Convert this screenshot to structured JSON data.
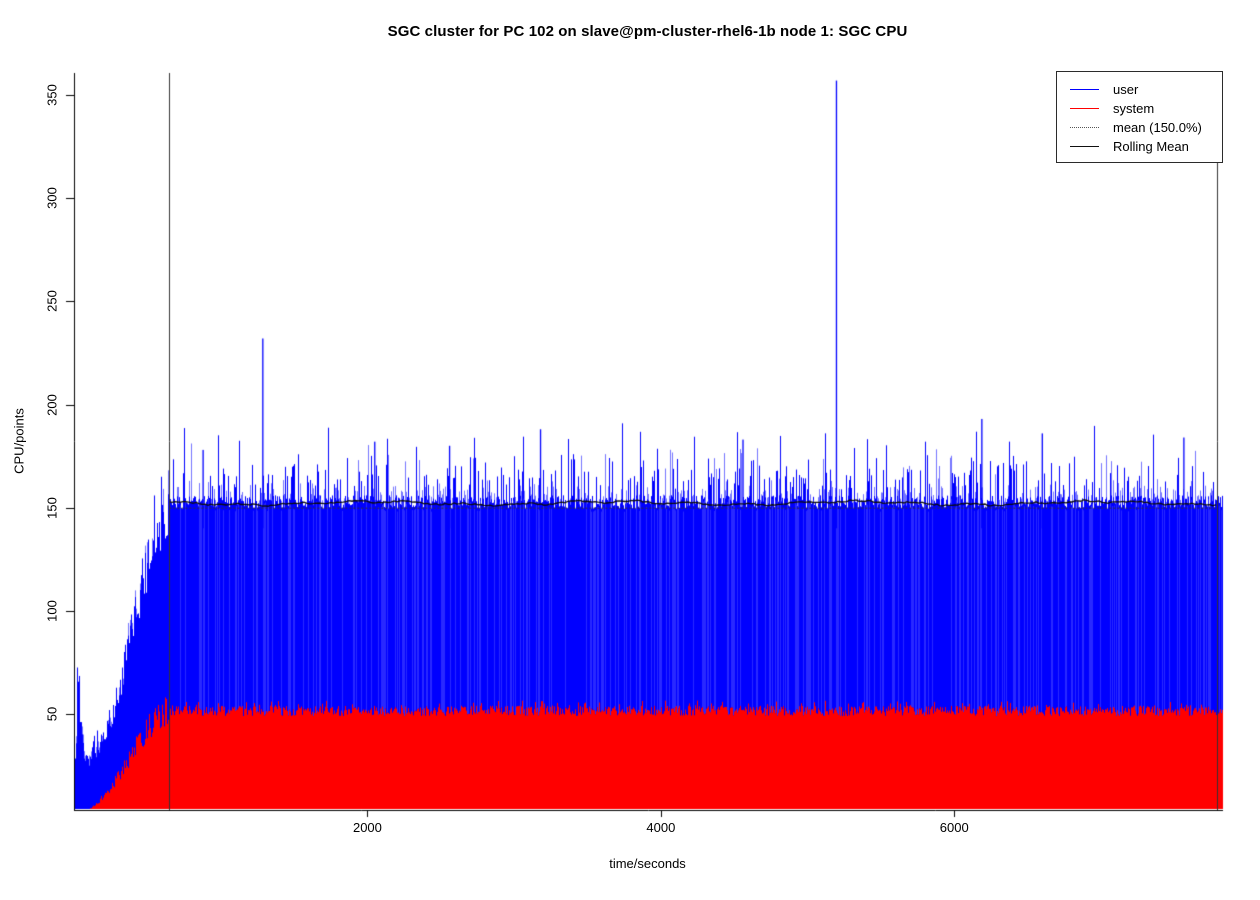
{
  "chart_data": {
    "type": "area",
    "title": "SGC cluster for PC 102 on slave@pm-cluster-rhel6-1b node 1: SGC CPU",
    "xlabel": "time/seconds",
    "ylabel": "CPU/points",
    "xlim": [
      0,
      7818
    ],
    "ylim": [
      0,
      360
    ],
    "x_ticks": [
      2000,
      4000,
      6000
    ],
    "y_ticks": [
      50,
      100,
      150,
      200,
      250,
      300,
      350
    ],
    "grid": false,
    "legend_position": "top-right",
    "legend": [
      {
        "label": "user",
        "color": "#0000ff",
        "style": "solid"
      },
      {
        "label": "system",
        "color": "#ff0000",
        "style": "solid"
      },
      {
        "label": "mean (150.0%)",
        "color": "#555555",
        "style": "dotted"
      },
      {
        "label": "Rolling Mean",
        "color": "#111111",
        "style": "solid"
      }
    ],
    "series": [
      {
        "name": "user",
        "color": "#0000ff",
        "fill": true,
        "envelope_t": [
          0,
          12,
          22,
          38,
          60,
          90,
          130,
          170,
          200,
          245,
          300,
          360,
          420,
          480,
          540,
          600,
          650,
          7818
        ],
        "envelope_v": [
          8,
          32,
          66,
          50,
          33,
          27,
          29,
          33,
          36,
          46,
          58,
          80,
          100,
          118,
          132,
          143,
          151,
          151
        ],
        "steady_mean": 150.0,
        "steady_band": [
          149,
          156
        ],
        "spike_band": [
          160,
          195
        ]
      },
      {
        "name": "system",
        "color": "#ff0000",
        "fill": true,
        "envelope_t": [
          0,
          60,
          120,
          200,
          245,
          300,
          360,
          420,
          480,
          540,
          600,
          650,
          7818
        ],
        "envelope_v": [
          0.5,
          2,
          5,
          10,
          14,
          20,
          27,
          34,
          41,
          46,
          50,
          52,
          52
        ],
        "steady_mean": 52,
        "steady_band": [
          49,
          57
        ]
      }
    ],
    "outlier_spikes": [
      {
        "t": 880,
        "v": 178
      },
      {
        "t": 1287,
        "v": 232
      },
      {
        "t": 2050,
        "v": 182
      },
      {
        "t": 2560,
        "v": 180
      },
      {
        "t": 3180,
        "v": 188
      },
      {
        "t": 4560,
        "v": 183
      },
      {
        "t": 5197,
        "v": 357
      },
      {
        "t": 6188,
        "v": 193
      },
      {
        "t": 6600,
        "v": 186
      },
      {
        "t": 7565,
        "v": 184
      }
    ],
    "mean_line": {
      "value": 150.0,
      "style": "dotted",
      "color": "#333333",
      "t_start": 650,
      "t_end": 7790
    },
    "rolling_mean": {
      "base": 152.2,
      "wiggle": 1.5,
      "color": "#0a0a0a",
      "t_start": 650,
      "t_end": 7790
    },
    "vlines": {
      "t": [
        650,
        7790
      ],
      "color": "#333333"
    }
  }
}
